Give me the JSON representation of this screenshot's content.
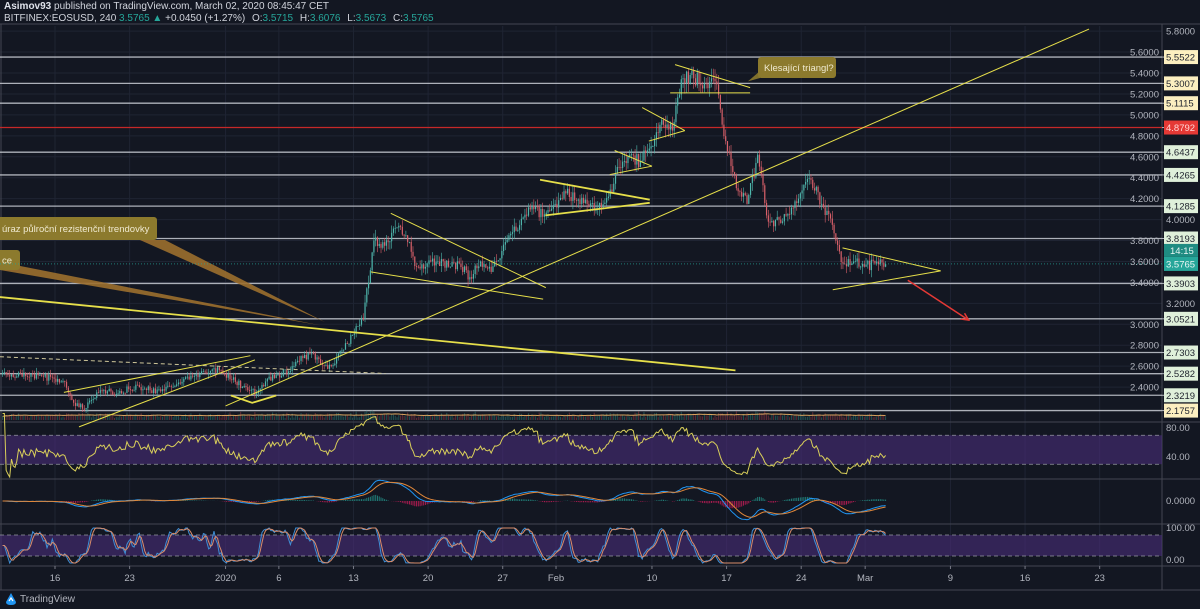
{
  "header": {
    "publisher": "Asimov93",
    "published_text": "published on TradingView.com, March 02, 2020 08:45:47 CET",
    "symbol": "BITFINEX:EOSUSD, 240",
    "last": "3.5765",
    "change_arrow": "▲",
    "change": "+0.0450 (+1.27%)",
    "o_label": "O:",
    "o": "3.5715",
    "h_label": "H:",
    "h": "3.6076",
    "l_label": "L:",
    "l": "3.5673",
    "c_label": "C:",
    "c": "3.5765"
  },
  "footer": {
    "brand": "TradingView",
    "logo_icon": "tradingview-logo-icon"
  },
  "colors": {
    "background": "#131722",
    "up": "#4fb7ad",
    "down": "#d9606a",
    "drawing": "#e6df4a",
    "level_line": "#c9ccd4",
    "red_level": "#c62828",
    "current_price": "#26a69a",
    "callout": "#8c7a2d",
    "indicator_band": "#4a2d7a"
  },
  "chart_data": {
    "type": "candlestick",
    "title": "",
    "interval": "240",
    "dates": [
      "2019-12-11",
      "2019-12-12",
      "2019-12-13",
      "2019-12-14",
      "2019-12-15",
      "2019-12-16",
      "2019-12-17",
      "2019-12-18",
      "2019-12-19",
      "2019-12-20",
      "2019-12-21",
      "2019-12-22",
      "2019-12-23",
      "2019-12-24",
      "2019-12-25",
      "2019-12-26",
      "2019-12-27",
      "2019-12-28",
      "2019-12-29",
      "2019-12-30",
      "2019-12-31",
      "2020-01-01",
      "2020-01-02",
      "2020-01-03",
      "2020-01-04",
      "2020-01-05",
      "2020-01-06",
      "2020-01-07",
      "2020-01-08",
      "2020-01-09",
      "2020-01-10",
      "2020-01-11",
      "2020-01-12",
      "2020-01-13",
      "2020-01-14",
      "2020-01-15",
      "2020-01-16",
      "2020-01-17",
      "2020-01-18",
      "2020-01-19",
      "2020-01-20",
      "2020-01-21",
      "2020-01-22",
      "2020-01-23",
      "2020-01-24",
      "2020-01-25",
      "2020-01-26",
      "2020-01-27",
      "2020-01-28",
      "2020-01-29",
      "2020-01-30",
      "2020-01-31",
      "2020-02-01",
      "2020-02-02",
      "2020-02-03",
      "2020-02-04",
      "2020-02-05",
      "2020-02-06",
      "2020-02-07",
      "2020-02-08",
      "2020-02-09",
      "2020-02-10",
      "2020-02-11",
      "2020-02-12",
      "2020-02-13",
      "2020-02-14",
      "2020-02-15",
      "2020-02-16",
      "2020-02-17",
      "2020-02-18",
      "2020-02-19",
      "2020-02-20",
      "2020-02-21",
      "2020-02-22",
      "2020-02-23",
      "2020-02-24",
      "2020-02-25",
      "2020-02-26",
      "2020-02-27",
      "2020-02-28",
      "2020-02-29",
      "2020-03-01",
      "2020-03-02"
    ],
    "close": [
      2.52,
      2.5,
      2.52,
      2.5,
      2.48,
      2.45,
      2.22,
      2.2,
      2.35,
      2.36,
      2.34,
      2.38,
      2.4,
      2.37,
      2.36,
      2.4,
      2.45,
      2.5,
      2.55,
      2.58,
      2.52,
      2.45,
      2.4,
      2.34,
      2.48,
      2.52,
      2.55,
      2.65,
      2.72,
      2.62,
      2.6,
      2.75,
      2.9,
      3.05,
      3.8,
      3.75,
      3.92,
      3.85,
      3.55,
      3.58,
      3.6,
      3.55,
      3.58,
      3.45,
      3.6,
      3.5,
      3.7,
      3.88,
      4.02,
      4.1,
      4.05,
      4.15,
      4.25,
      4.18,
      4.15,
      4.1,
      4.22,
      4.5,
      4.62,
      4.55,
      4.7,
      4.95,
      4.85,
      5.35,
      5.35,
      5.3,
      5.32,
      4.75,
      4.3,
      4.15,
      4.62,
      3.98,
      4.0,
      4.05,
      4.25,
      4.38,
      4.15,
      3.95,
      3.58,
      3.6,
      3.55,
      3.58,
      3.5765
    ],
    "current_price": "3.5765",
    "countdown": "14:15",
    "ylim": [
      2.1,
      5.85
    ],
    "y_ticks": [
      "5.8000",
      "5.6000",
      "5.4000",
      "5.2000",
      "5.0000",
      "4.8000",
      "4.6000",
      "4.4000",
      "4.2000",
      "4.0000",
      "3.8000",
      "3.6000",
      "3.4000",
      "3.2000",
      "3.0000",
      "2.8000",
      "2.6000",
      "2.4000"
    ],
    "x_ticks": [
      {
        "label": "16",
        "date": "2019-12-16"
      },
      {
        "label": "23",
        "date": "2019-12-23"
      },
      {
        "label": "2020",
        "date": "2020-01-01"
      },
      {
        "label": "6",
        "date": "2020-01-06"
      },
      {
        "label": "13",
        "date": "2020-01-13"
      },
      {
        "label": "20",
        "date": "2020-01-20"
      },
      {
        "label": "27",
        "date": "2020-01-27"
      },
      {
        "label": "Feb",
        "date": "2020-02-01"
      },
      {
        "label": "10",
        "date": "2020-02-10"
      },
      {
        "label": "17",
        "date": "2020-02-17"
      },
      {
        "label": "24",
        "date": "2020-02-24"
      },
      {
        "label": "Mar",
        "date": "2020-03-01"
      },
      {
        "label": "9",
        "date": "2020-03-09"
      },
      {
        "label": "16",
        "date": "2020-03-16"
      },
      {
        "label": "23",
        "date": "2020-03-23"
      }
    ],
    "levels": [
      {
        "price": "5.5522",
        "tone": "yellow"
      },
      {
        "price": "5.3007",
        "tone": "yellow"
      },
      {
        "price": "5.1115",
        "tone": "yellow"
      },
      {
        "price": "4.8792",
        "tone": "red"
      },
      {
        "price": "4.6437",
        "tone": "green"
      },
      {
        "price": "4.4265",
        "tone": "green"
      },
      {
        "price": "4.1285",
        "tone": "green"
      },
      {
        "price": "3.8193",
        "tone": "green"
      },
      {
        "price": "3.3903",
        "tone": "green"
      },
      {
        "price": "3.0521",
        "tone": "green"
      },
      {
        "price": "2.7303",
        "tone": "green"
      },
      {
        "price": "2.5282",
        "tone": "green"
      },
      {
        "price": "2.3219",
        "tone": "green"
      },
      {
        "price": "2.1757",
        "tone": "yellow"
      }
    ],
    "drawings": [
      {
        "name": "long-uptrend",
        "style": "solid",
        "points": [
          [
            "2020-01-01T00:00",
            2.22
          ],
          [
            "2020-03-22T00:00",
            5.82
          ]
        ]
      },
      {
        "name": "half-year-resistance-trendline",
        "style": "bold",
        "points": [
          [
            "2019-12-10T20:00",
            3.26
          ],
          [
            "2020-02-17T20:00",
            2.56
          ]
        ]
      },
      {
        "name": "dashed-support",
        "style": "dashed",
        "points": [
          [
            "2019-12-10T20:00",
            2.69
          ],
          [
            "2020-01-16T00:00",
            2.53
          ]
        ]
      },
      {
        "name": "dec-channel-upper",
        "style": "solid",
        "points": [
          [
            "2019-12-16T20:00",
            2.35
          ],
          [
            "2020-01-03T08:00",
            2.7
          ]
        ]
      },
      {
        "name": "dec-channel-lower",
        "style": "solid",
        "points": [
          [
            "2019-12-18T06:00",
            2.02
          ],
          [
            "2020-01-03T18:00",
            2.66
          ]
        ]
      },
      {
        "name": "jan-bottom-arc",
        "style": "bold",
        "points": [
          [
            "2020-01-01T12:00",
            2.32
          ],
          [
            "2020-01-03T12:00",
            2.25
          ],
          [
            "2020-01-05T18:00",
            2.32
          ]
        ]
      },
      {
        "name": "jan-wedge-upper",
        "style": "solid",
        "points": [
          [
            "2020-01-16T12:00",
            4.06
          ],
          [
            "2020-01-31T01:00",
            3.35
          ]
        ]
      },
      {
        "name": "jan-wedge-lower",
        "style": "solid",
        "points": [
          [
            "2020-01-14T15:00",
            3.5
          ],
          [
            "2020-01-30T19:00",
            3.24
          ]
        ]
      },
      {
        "name": "feb-triangle-upper",
        "style": "bold",
        "points": [
          [
            "2020-01-30T12:00",
            4.38
          ],
          [
            "2020-02-09T19:00",
            4.19
          ]
        ]
      },
      {
        "name": "feb-triangle-lower",
        "style": "bold",
        "points": [
          [
            "2020-01-31T00:00",
            4.04
          ],
          [
            "2020-02-09T19:00",
            4.16
          ]
        ]
      },
      {
        "name": "feb6-triangle-upper",
        "style": "solid",
        "points": [
          [
            "2020-02-06T12:00",
            4.66
          ],
          [
            "2020-02-10T00:00",
            4.51
          ]
        ]
      },
      {
        "name": "feb6-triangle-lower",
        "style": "solid",
        "points": [
          [
            "2020-02-06T01:00",
            4.43
          ],
          [
            "2020-02-10T00:00",
            4.51
          ]
        ]
      },
      {
        "name": "feb9-triangle-upper",
        "style": "solid",
        "points": [
          [
            "2020-02-09T02:00",
            5.07
          ],
          [
            "2020-02-13T02:00",
            4.85
          ]
        ]
      },
      {
        "name": "feb9-triangle-lower",
        "style": "solid",
        "points": [
          [
            "2020-02-09T17:00",
            4.75
          ],
          [
            "2020-02-13T02:00",
            4.85
          ]
        ]
      },
      {
        "name": "descending-triangle-upper",
        "style": "solid",
        "points": [
          [
            "2020-02-12T04:00",
            5.48
          ],
          [
            "2020-02-19T05:00",
            5.26
          ]
        ]
      },
      {
        "name": "descending-triangle-lower",
        "style": "solid",
        "points": [
          [
            "2020-02-11T17:00",
            5.21
          ],
          [
            "2020-02-19T05:00",
            5.21
          ]
        ]
      },
      {
        "name": "current-triangle-upper",
        "style": "solid",
        "points": [
          [
            "2020-02-27T21:00",
            3.73
          ],
          [
            "2020-03-08T02:00",
            3.51
          ]
        ]
      },
      {
        "name": "current-triangle-lower",
        "style": "solid",
        "points": [
          [
            "2020-02-26T23:00",
            3.33
          ],
          [
            "2020-03-08T02:00",
            3.51
          ]
        ]
      },
      {
        "name": "projection-arrow",
        "style": "arrow",
        "points": [
          [
            "2020-03-05T00:00",
            3.42
          ],
          [
            "2020-03-10T17:00",
            3.04
          ]
        ]
      }
    ],
    "annotations": [
      {
        "text": "úraz půlroční rezistenční trendovky",
        "target": [
          "2020-01-10T08:00",
          3.02
        ]
      },
      {
        "text": "ce",
        "target": [
          "2020-01-09T22:00",
          2.99
        ]
      },
      {
        "text": "Klesající triangl?",
        "target": [
          "2020-02-19T00:00",
          5.32
        ]
      }
    ],
    "indicators": {
      "rsi": {
        "ticks": [
          "80.00",
          "40.00"
        ],
        "band": [
          30,
          70
        ]
      },
      "macd": {
        "ticks": [
          "0.0000"
        ]
      },
      "stoch_rsi": {
        "ticks": [
          "100.00",
          "0.00"
        ],
        "band": [
          20,
          80
        ]
      }
    },
    "grid": true,
    "legend": "none"
  }
}
